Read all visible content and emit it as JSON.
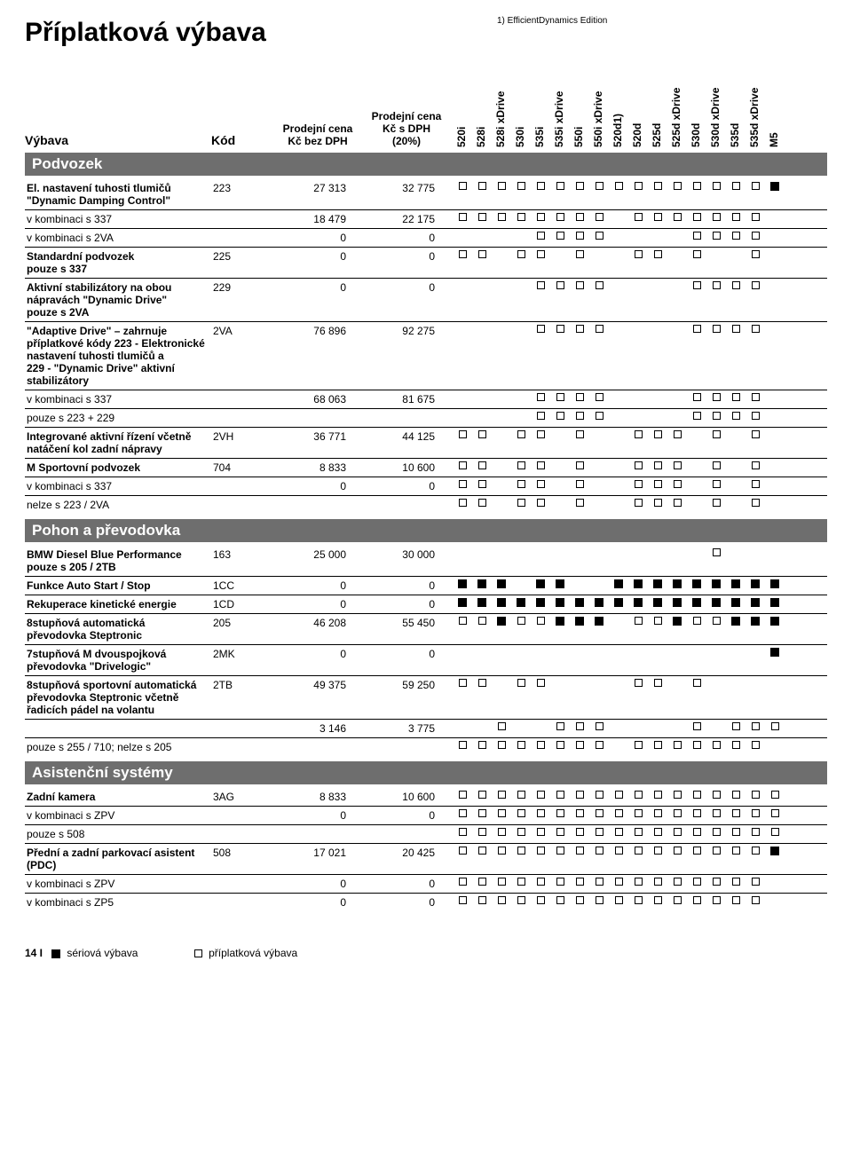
{
  "title": "Příplatková výbava",
  "footnote_edition": "1) EfficientDynamics Edition",
  "header": {
    "vybava": "Výbava",
    "kod": "Kód",
    "cena1_l1": "Prodejní cena",
    "cena1_l2": "Kč bez DPH",
    "cena2_l1": "Prodejní cena",
    "cena2_l2": "Kč s DPH",
    "cena2_l3": "(20%)"
  },
  "models": [
    "520i",
    "528i",
    "528i xDrive",
    "530i",
    "535i",
    "535i xDrive",
    "550i",
    "550i xDrive",
    "520d1)",
    "520d",
    "525d",
    "525d xDrive",
    "530d",
    "530d xDrive",
    "535d",
    "535d xDrive",
    "M5"
  ],
  "sections": [
    {
      "title": "Podvozek",
      "rows": [
        {
          "bold": true,
          "name": "El. nastavení tuhosti tlumičů\n\"Dynamic Damping Control\"",
          "kod": "223",
          "p1": "27 313",
          "p2": "32 775",
          "marks": "ooooooooooooooooF",
          "br": true
        },
        {
          "name": "v kombinaci s 337",
          "kod": "",
          "p1": "18 479",
          "p2": "22 175",
          "marks": "oooooooo.ooooooo.",
          "br": true
        },
        {
          "name": "v kombinaci s 2VA",
          "kod": "",
          "p1": "0",
          "p2": "0",
          "marks": "....oooo....oooo.",
          "br": true
        },
        {
          "bold": true,
          "name": "Standardní podvozek\npouze s 337",
          "kod": "225",
          "p1": "0",
          "p2": "0",
          "marks": "oo.oo.o..oo.o..o.",
          "br": true
        },
        {
          "bold": true,
          "name": "Aktivní stabilizátory na obou\nnápravách \"Dynamic Drive\"\npouze s 2VA",
          "kod": "229",
          "p1": "0",
          "p2": "0",
          "marks": "....oooo....oooo.",
          "br": true
        },
        {
          "bold": true,
          "name": "\"Adaptive Drive\" – zahrnuje\npříplatkové kódy 223 - Elektronické\nnastavení tuhosti tlumičů a\n229 - \"Dynamic Drive\" aktivní\nstabilizátory",
          "kod": "2VA",
          "p1": "76 896",
          "p2": "92 275",
          "marks": "....oooo....oooo.",
          "br": true
        },
        {
          "name": "v kombinaci s 337",
          "kod": "",
          "p1": "68 063",
          "p2": "81 675",
          "marks": "....oooo....oooo.",
          "br": true
        },
        {
          "name": "pouze s 223 + 229",
          "kod": "",
          "p1": "",
          "p2": "",
          "marks": "....oooo....oooo.",
          "br": true
        },
        {
          "bold": true,
          "name": "Integrované aktivní řízení včetně\nnatáčení kol zadní nápravy",
          "kod": "2VH",
          "p1": "36 771",
          "p2": "44 125",
          "marks": "oo.oo.o..ooo.o.o.",
          "br": true
        },
        {
          "bold": true,
          "name": "M Sportovní podvozek",
          "kod": "704",
          "p1": "8 833",
          "p2": "10 600",
          "marks": "oo.oo.o..ooo.o.o.",
          "br": true
        },
        {
          "name": "v kombinaci s 337",
          "kod": "",
          "p1": "0",
          "p2": "0",
          "marks": "oo.oo.o..ooo.o.o.",
          "br": true
        },
        {
          "name": "nelze s 223 / 2VA",
          "kod": "",
          "p1": "",
          "p2": "",
          "marks": "oo.oo.o..ooo.o.o.",
          "br": false
        }
      ]
    },
    {
      "title": "Pohon a převodovka",
      "rows": [
        {
          "bold": true,
          "name": "BMW Diesel Blue Performance\npouze s 205 / 2TB",
          "kod": "163",
          "p1": "25 000",
          "p2": "30 000",
          "marks": ".............o...",
          "br": true
        },
        {
          "bold": true,
          "name": "Funkce Auto Start / Stop",
          "kod": "1CC",
          "p1": "0",
          "p2": "0",
          "marks": "FFF.FF..FFFFFFFFF",
          "br": true
        },
        {
          "bold": true,
          "name": "Rekuperace kinetické energie",
          "kod": "1CD",
          "p1": "0",
          "p2": "0",
          "marks": "FFFFFFFFFFFFFFFFF",
          "br": true
        },
        {
          "bold": true,
          "name": "8stupňová automatická\npřevodovka Steptronic",
          "kod": "205",
          "p1": "46 208",
          "p2": "55 450",
          "marks": "ooFooFFF.ooFooFFF",
          "br": true
        },
        {
          "bold": true,
          "name": "7stupňová M dvouspojková\npřevodovka \"Drivelogic\"",
          "kod": "2MK",
          "p1": "0",
          "p2": "0",
          "marks": "................F",
          "br": true
        },
        {
          "bold": true,
          "name": "8stupňová sportovní automatická\npřevodovka Steptronic včetně\nřadicích pádel na volantu",
          "kod": "2TB",
          "p1": "49 375",
          "p2": "59 250",
          "marks": "oo.oo....oo.o....",
          "br": true
        },
        {
          "name": "",
          "kod": "",
          "p1": "3 146",
          "p2": "3 775",
          "marks": "..o..ooo....o.ooo",
          "br": true
        },
        {
          "name": "pouze s 255 / 710; nelze s 205",
          "kod": "",
          "p1": "",
          "p2": "",
          "marks": "oooooooo.ooooooo.",
          "br": false
        }
      ]
    },
    {
      "title": "Asistenční systémy",
      "rows": [
        {
          "bold": true,
          "name": "Zadní kamera",
          "kod": "3AG",
          "p1": "8 833",
          "p2": "10 600",
          "marks": "ooooooooooooooooo",
          "br": true
        },
        {
          "name": "v kombinaci s ZPV",
          "kod": "",
          "p1": "0",
          "p2": "0",
          "marks": "ooooooooooooooooo",
          "br": true
        },
        {
          "name": "pouze s 508",
          "kod": "",
          "p1": "",
          "p2": "",
          "marks": "ooooooooooooooooo",
          "br": true
        },
        {
          "bold": true,
          "name": "Přední a zadní parkovací asistent\n(PDC)",
          "kod": "508",
          "p1": "17 021",
          "p2": "20 425",
          "marks": "ooooooooooooooooF",
          "br": true
        },
        {
          "name": "v kombinaci s ZPV",
          "kod": "",
          "p1": "0",
          "p2": "0",
          "marks": "oooooooooooooooo.",
          "br": true
        },
        {
          "name": "v kombinaci s ZP5",
          "kod": "",
          "p1": "0",
          "p2": "0",
          "marks": "oooooooooooooooo.",
          "br": false
        }
      ]
    }
  ],
  "footer": {
    "page": "14 I",
    "series": "sériová výbava",
    "optional": "příplatková výbava"
  }
}
